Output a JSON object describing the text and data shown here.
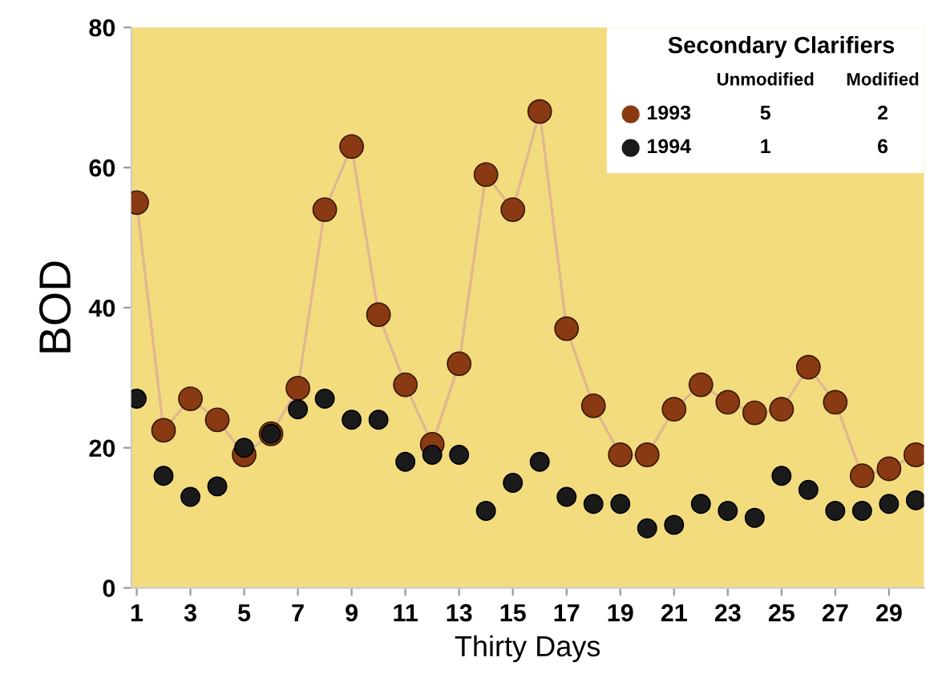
{
  "chart_data": {
    "type": "line",
    "xlabel": "Thirty Days",
    "ylabel": "BOD",
    "legend_title": "Secondary Clarifiers",
    "legend": "top right",
    "marker": "circle",
    "grid": false,
    "x": [
      1,
      2,
      3,
      4,
      5,
      6,
      7,
      8,
      9,
      10,
      11,
      12,
      13,
      14,
      15,
      16,
      17,
      18,
      19,
      20,
      21,
      22,
      23,
      24,
      25,
      26,
      27,
      28,
      29,
      30
    ],
    "xlim": [
      0.8,
      30.3
    ],
    "xticks": [
      1,
      3,
      5,
      7,
      9,
      11,
      13,
      15,
      17,
      19,
      21,
      23,
      25,
      27,
      29
    ],
    "ylim": [
      0,
      80
    ],
    "yticks": [
      0,
      20,
      40,
      60,
      80
    ],
    "series": [
      {
        "name": "1993",
        "color": "#8a3a12",
        "values": [
          55,
          22.5,
          27,
          24,
          19,
          22,
          28.5,
          54,
          63,
          39,
          29,
          20.5,
          32,
          59,
          54,
          68,
          37,
          26,
          19,
          19,
          25.5,
          29,
          26.5,
          25,
          25.5,
          31.5,
          26.5,
          16,
          17,
          19
        ]
      },
      {
        "name": "1994",
        "type": "scatter",
        "color": "#1a1a1a",
        "values": [
          27,
          16,
          13,
          14.5,
          20,
          22,
          25.5,
          27,
          24,
          24,
          18,
          19,
          19,
          11,
          15,
          18,
          13,
          12,
          12,
          8.5,
          9,
          12,
          11,
          10,
          16,
          14,
          11,
          11,
          12,
          12.5
        ]
      }
    ],
    "annotations": [
      "Unmodified",
      "Modified",
      "5",
      "2",
      "1",
      "6"
    ]
  }
}
